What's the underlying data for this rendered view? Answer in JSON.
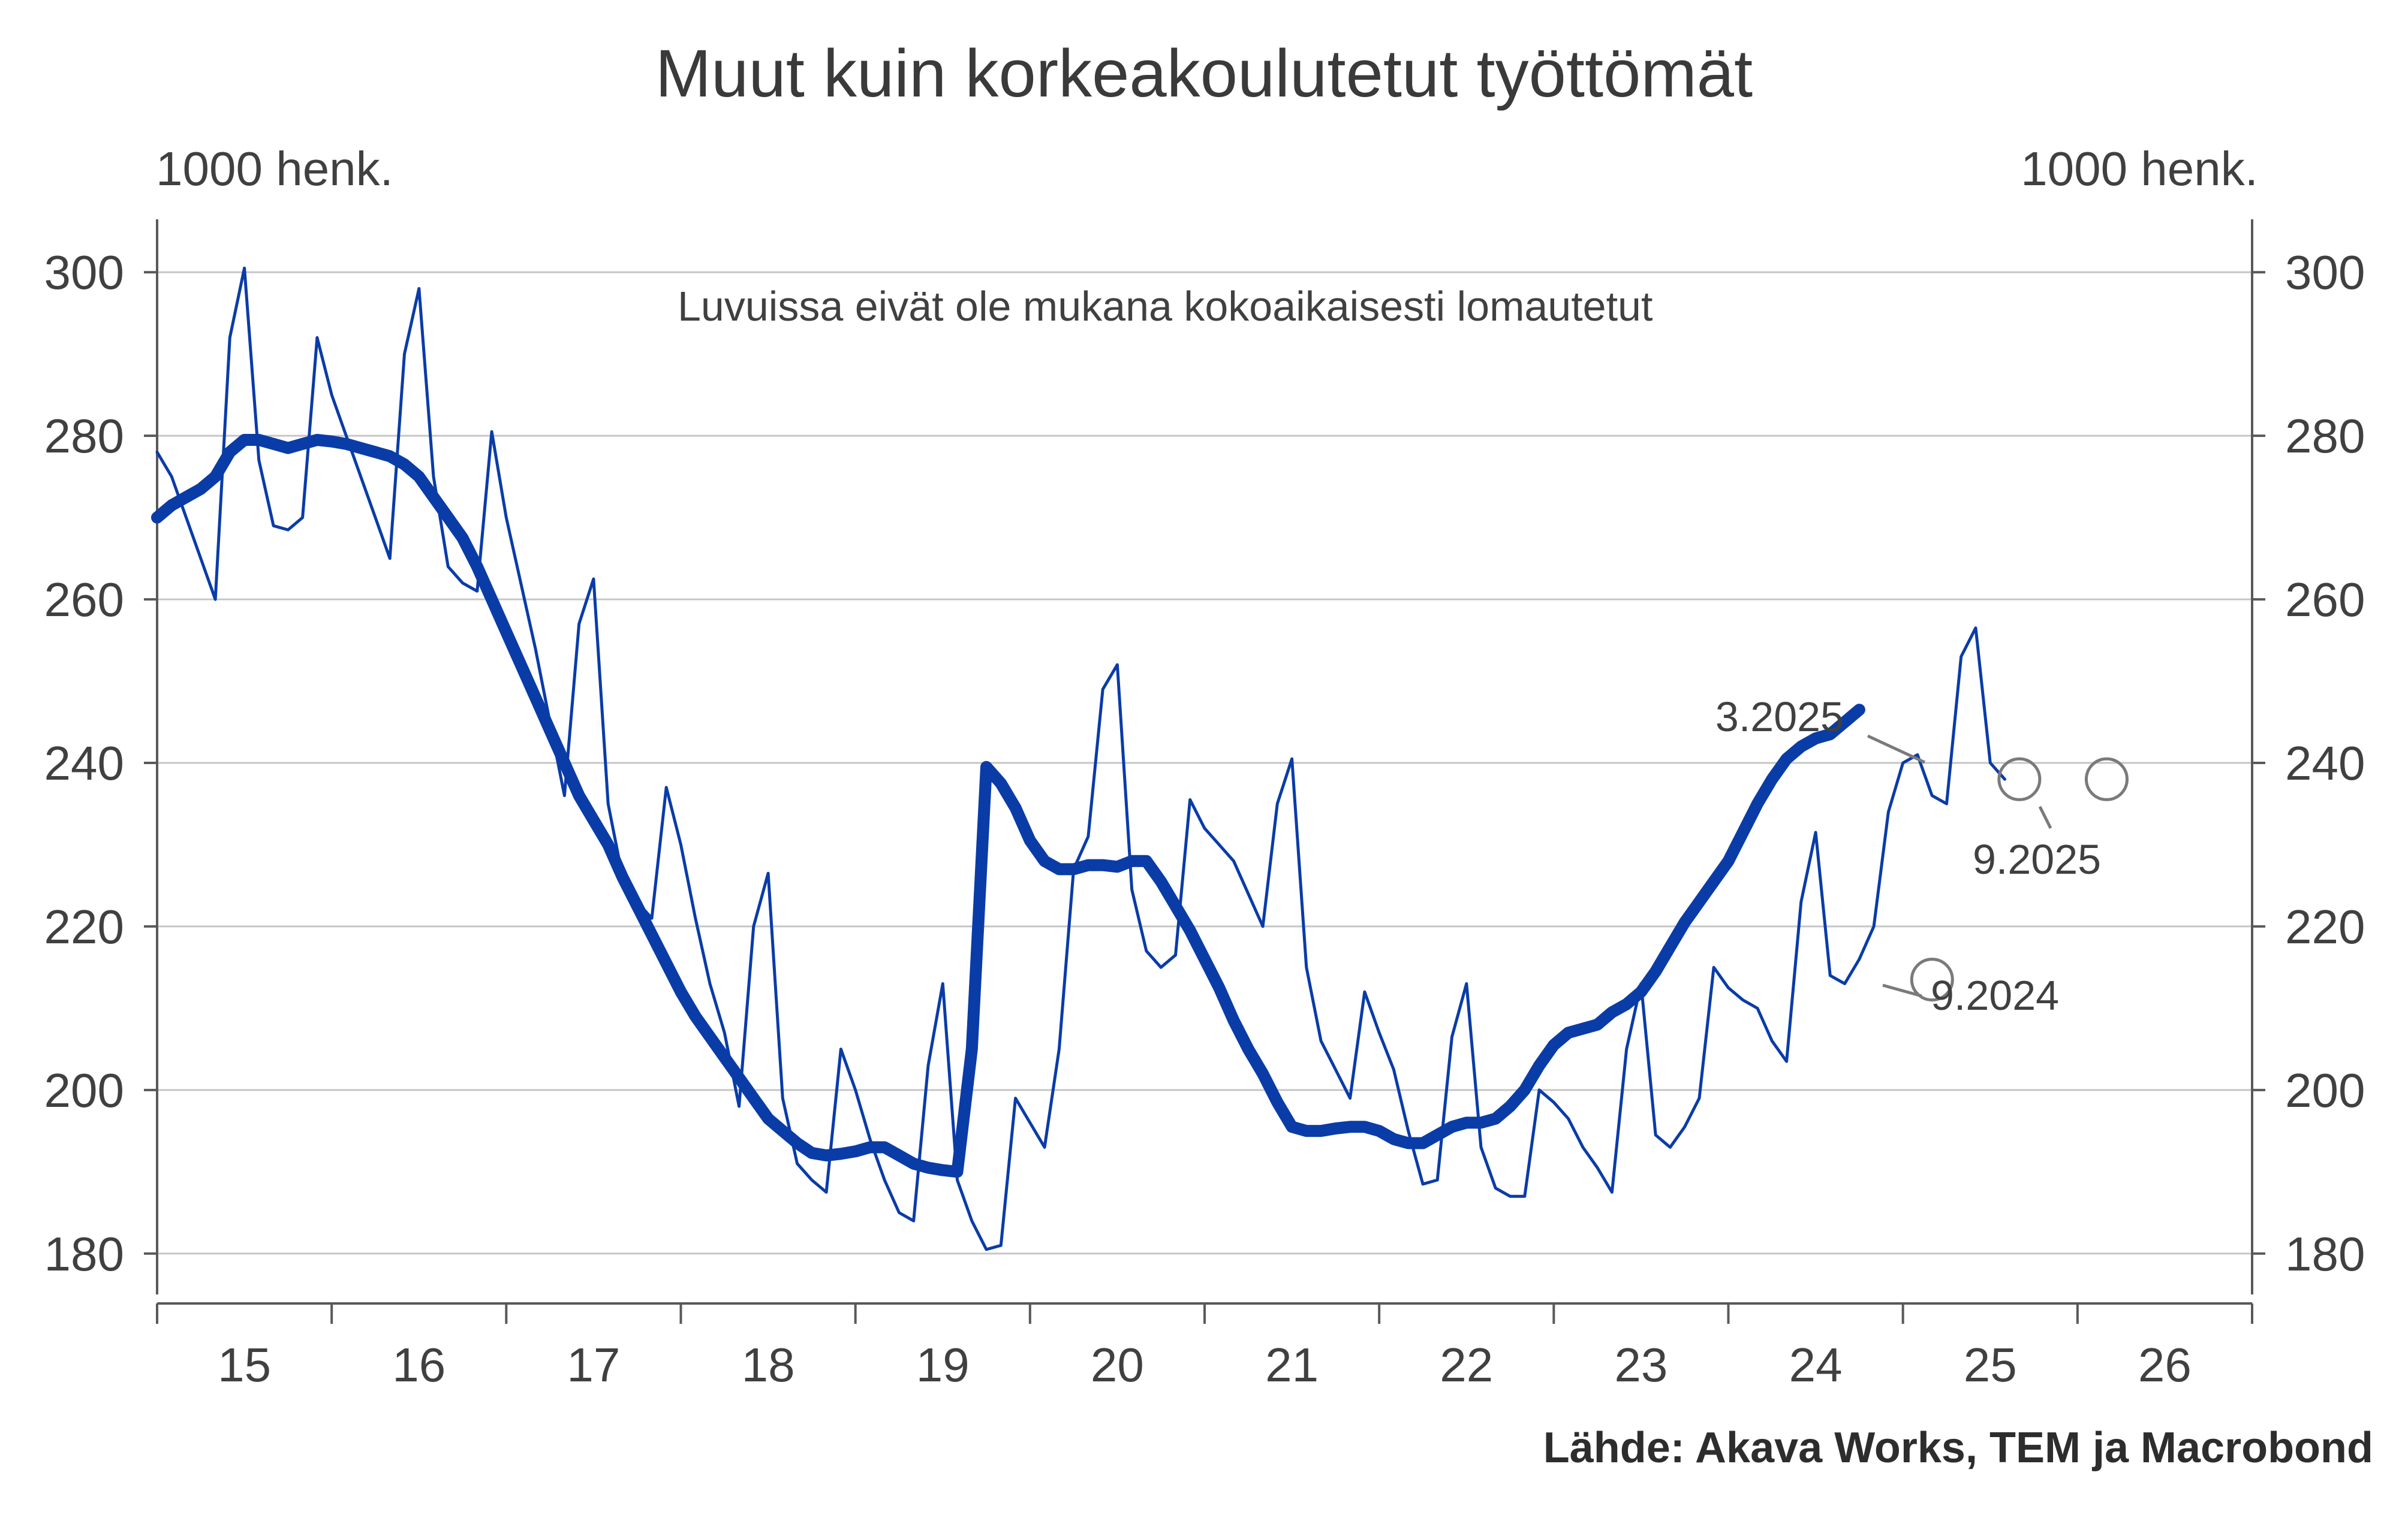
{
  "chart_data": {
    "type": "line",
    "title": "Muut kuin korkeakoulutetut työttömät",
    "ylabel_left": "1000 henk.",
    "ylabel_right": "1000 henk.",
    "annotation": "Luvuissa eivät ole mukana kokoaikaisesti lomautetut",
    "source": "Lähde: Akava Works, TEM ja Macrobond",
    "ylim": [
      175,
      305
    ],
    "yticks": [
      180,
      200,
      220,
      240,
      260,
      280,
      300
    ],
    "xlim": [
      2014.5,
      2026.5
    ],
    "xtick_labels": [
      "15",
      "16",
      "17",
      "18",
      "19",
      "20",
      "21",
      "22",
      "23",
      "24",
      "25",
      "26"
    ],
    "callouts": [
      {
        "label": "3.2025",
        "x": 2025.167,
        "y": 238
      },
      {
        "label": "9.2025",
        "x": 2025.667,
        "y": 238
      },
      {
        "label": "9.2024",
        "x": 2024.667,
        "y": 213.5
      }
    ],
    "series": [
      {
        "name": "Kuukausiluku",
        "style": "thin",
        "start": 2014.5,
        "step_months": 1,
        "values": [
          278,
          275,
          270,
          265,
          260,
          292,
          300.5,
          277,
          269,
          268.5,
          270,
          292,
          285,
          280,
          275,
          270,
          265,
          290,
          298,
          275,
          264,
          262,
          261,
          280.5,
          270,
          262,
          254,
          245,
          236,
          257,
          262.5,
          235,
          226,
          223,
          221,
          237,
          230,
          221,
          213,
          207,
          198,
          220,
          226.5,
          199,
          191,
          189,
          187.5,
          205,
          200,
          194,
          189,
          185,
          184,
          203,
          213,
          189,
          184,
          180.5,
          181,
          199,
          196,
          193,
          205,
          227,
          231,
          249,
          252,
          224.5,
          217,
          215,
          216.5,
          235.5,
          232,
          230,
          228,
          224,
          220,
          235,
          240.5,
          215,
          206,
          202.5,
          199,
          212,
          207,
          202.5,
          195,
          188.5,
          189,
          206.5,
          213,
          193,
          188,
          187,
          187,
          200,
          198.5,
          196.5,
          193,
          190.5,
          187.5,
          205,
          213,
          194.5,
          193,
          195.5,
          199,
          215,
          212.5,
          211,
          210,
          206,
          203.5,
          223,
          231.5,
          214,
          213,
          216,
          220,
          234,
          240,
          241,
          236,
          235,
          253,
          256.5,
          240,
          238
        ]
      },
      {
        "name": "Trendi",
        "style": "thick",
        "start": 2014.5,
        "step_months": 1,
        "values": [
          270,
          271.5,
          272.5,
          273.5,
          275,
          278,
          279.5,
          279.5,
          279,
          278.5,
          279,
          279.5,
          279.3,
          279,
          278.5,
          278,
          277.5,
          276.5,
          275,
          272.5,
          270,
          267.5,
          264,
          260,
          256,
          252,
          248,
          244,
          240,
          236,
          233,
          230,
          226,
          222.5,
          219,
          215.5,
          212,
          209,
          206.5,
          204,
          201.5,
          199,
          196.5,
          195,
          193.5,
          192.3,
          192,
          192.2,
          192.5,
          193,
          193,
          192,
          191,
          190.5,
          190.2,
          190,
          205,
          239.5,
          237.5,
          234.5,
          230.5,
          228,
          227,
          227,
          227.5,
          227.5,
          227.3,
          228,
          228,
          225.5,
          222.5,
          219.5,
          216,
          212.5,
          208.5,
          205,
          202,
          198.5,
          195.5,
          195,
          195,
          195.3,
          195.5,
          195.5,
          195,
          194,
          193.5,
          193.5,
          194.5,
          195.5,
          196,
          196,
          196.5,
          198,
          200,
          203,
          205.5,
          207,
          207.5,
          208,
          209.5,
          210.5,
          212,
          214.5,
          217.5,
          220.5,
          223,
          225.5,
          228,
          231.5,
          235,
          238,
          240.5,
          242,
          243,
          243.5,
          245,
          246.5
        ]
      }
    ]
  },
  "colors": {
    "line": "#0a3ca8",
    "grid": "#c6c6c6",
    "axis": "#595959",
    "callout": "#7a7a7a"
  }
}
